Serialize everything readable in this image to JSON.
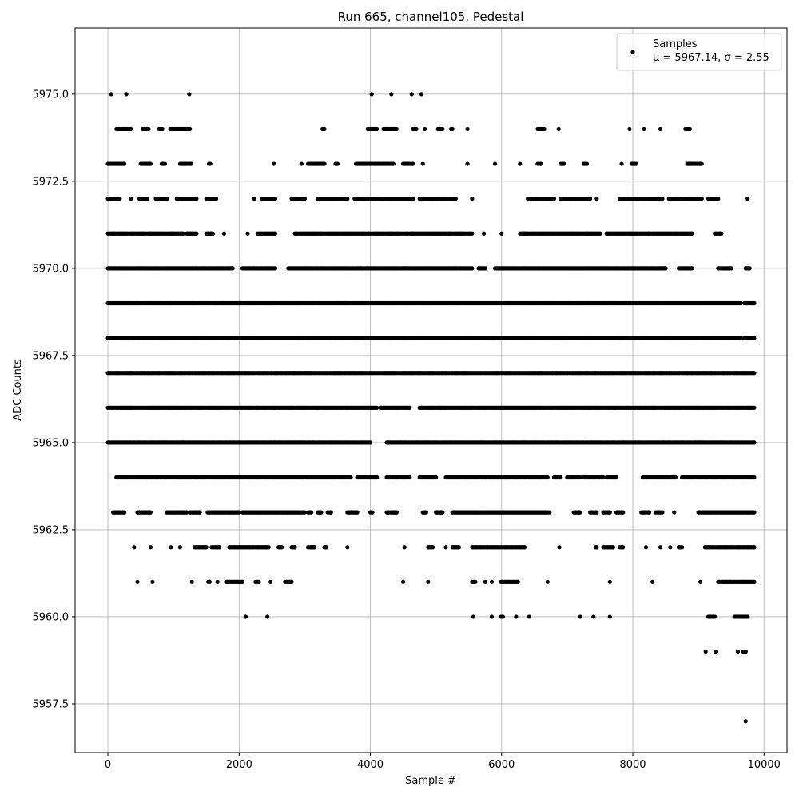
{
  "chart_data": {
    "type": "scatter",
    "title": "Run 665, channel105, Pedestal",
    "xlabel": "Sample #",
    "ylabel": "ADC Counts",
    "xlim": [
      -500,
      10350
    ],
    "ylim": [
      5956.1,
      5976.9
    ],
    "x_ticks": [
      0,
      2000,
      4000,
      6000,
      8000,
      10000
    ],
    "y_ticks": [
      5957.5,
      5960.0,
      5962.5,
      5965.0,
      5967.5,
      5970.0,
      5972.5,
      5975.0
    ],
    "x_tick_labels": [
      "0",
      "2000",
      "4000",
      "6000",
      "8000",
      "10000"
    ],
    "y_tick_labels": [
      "5957.5",
      "5960.0",
      "5962.5",
      "5965.0",
      "5967.5",
      "5970.0",
      "5972.5",
      "5975.0"
    ],
    "grid": true,
    "legend": {
      "placement": "top-right",
      "series_name": "Samples",
      "stats_text": "μ = 5967.14, σ = 2.55"
    },
    "marker_color": "#000000",
    "series": [
      {
        "name": "Samples",
        "levels": [
          {
            "y": 5975,
            "ranges": [
              [
                50,
                50
              ],
              [
                280,
                280
              ],
              [
                1240,
                1240
              ],
              [
                4020,
                4020
              ],
              [
                4320,
                4320
              ],
              [
                4630,
                4630
              ],
              [
                4780,
                4780
              ]
            ]
          },
          {
            "y": 5974,
            "ranges": [
              [
                130,
                350
              ],
              [
                530,
                620
              ],
              [
                780,
                830
              ],
              [
                950,
                1250
              ],
              [
                3270,
                3300
              ],
              [
                3960,
                4100
              ],
              [
                4200,
                4400
              ],
              [
                4650,
                4700
              ],
              [
                4830,
                4830
              ],
              [
                5030,
                5100
              ],
              [
                5230,
                5250
              ],
              [
                5480,
                5480
              ],
              [
                6550,
                6650
              ],
              [
                6870,
                6870
              ],
              [
                7950,
                7950
              ],
              [
                8170,
                8170
              ],
              [
                8420,
                8420
              ],
              [
                8800,
                8870
              ]
            ]
          },
          {
            "y": 5973,
            "ranges": [
              [
                0,
                250
              ],
              [
                500,
                650
              ],
              [
                820,
                870
              ],
              [
                1100,
                1270
              ],
              [
                1540,
                1560
              ],
              [
                2530,
                2530
              ],
              [
                2950,
                2950
              ],
              [
                3050,
                3300
              ],
              [
                3470,
                3500
              ],
              [
                3780,
                4350
              ],
              [
                4500,
                4650
              ],
              [
                4800,
                4800
              ],
              [
                5480,
                5480
              ],
              [
                5900,
                5900
              ],
              [
                6280,
                6280
              ],
              [
                6550,
                6600
              ],
              [
                6900,
                6950
              ],
              [
                7250,
                7300
              ],
              [
                7830,
                7830
              ],
              [
                7980,
                8050
              ],
              [
                8830,
                9050
              ]
            ]
          },
          {
            "y": 5972,
            "ranges": [
              [
                0,
                180
              ],
              [
                350,
                350
              ],
              [
                480,
                600
              ],
              [
                730,
                900
              ],
              [
                1050,
                1350
              ],
              [
                1500,
                1650
              ],
              [
                2230,
                2230
              ],
              [
                2350,
                2550
              ],
              [
                2800,
                3000
              ],
              [
                3200,
                3650
              ],
              [
                3760,
                4650
              ],
              [
                4750,
                5300
              ],
              [
                5550,
                5550
              ],
              [
                6400,
                6800
              ],
              [
                6900,
                7350
              ],
              [
                7450,
                7450
              ],
              [
                7800,
                8450
              ],
              [
                8550,
                9050
              ],
              [
                9150,
                9300
              ],
              [
                9750,
                9750
              ]
            ]
          },
          {
            "y": 5971,
            "ranges": [
              [
                0,
                1150
              ],
              [
                1200,
                1350
              ],
              [
                1500,
                1600
              ],
              [
                1770,
                1770
              ],
              [
                2130,
                2130
              ],
              [
                2280,
                2550
              ],
              [
                2850,
                5550
              ],
              [
                5730,
                5730
              ],
              [
                6000,
                6000
              ],
              [
                6280,
                7500
              ],
              [
                7600,
                8900
              ],
              [
                9250,
                9350
              ]
            ]
          },
          {
            "y": 5970,
            "ranges": [
              [
                0,
                1900
              ],
              [
                2050,
                2550
              ],
              [
                2750,
                5550
              ],
              [
                5650,
                5750
              ],
              [
                5900,
                8500
              ],
              [
                8700,
                8900
              ],
              [
                9300,
                9500
              ],
              [
                9720,
                9780
              ]
            ]
          },
          {
            "y": 5969,
            "ranges": [
              [
                0,
                9650
              ],
              [
                9700,
                9850
              ]
            ]
          },
          {
            "y": 5968,
            "ranges": [
              [
                0,
                9650
              ],
              [
                9700,
                9850
              ]
            ]
          },
          {
            "y": 5967,
            "ranges": [
              [
                0,
                9850
              ]
            ]
          },
          {
            "y": 5966,
            "ranges": [
              [
                0,
                4100
              ],
              [
                4150,
                4600
              ],
              [
                4750,
                9850
              ]
            ]
          },
          {
            "y": 5965,
            "ranges": [
              [
                0,
                4000
              ],
              [
                4250,
                9850
              ]
            ]
          },
          {
            "y": 5964,
            "ranges": [
              [
                130,
                350
              ],
              [
                380,
                880
              ],
              [
                900,
                3700
              ],
              [
                3800,
                4100
              ],
              [
                4250,
                4600
              ],
              [
                4750,
                5000
              ],
              [
                5150,
                6700
              ],
              [
                6800,
                6900
              ],
              [
                7000,
                7200
              ],
              [
                7250,
                7550
              ],
              [
                7600,
                7750
              ],
              [
                8150,
                8650
              ],
              [
                8750,
                9850
              ]
            ]
          },
          {
            "y": 5963,
            "ranges": [
              [
                80,
                250
              ],
              [
                450,
                650
              ],
              [
                900,
                1200
              ],
              [
                1250,
                1400
              ],
              [
                1520,
                2000
              ],
              [
                2050,
                3000
              ],
              [
                3050,
                3100
              ],
              [
                3200,
                3250
              ],
              [
                3350,
                3400
              ],
              [
                3650,
                3800
              ],
              [
                4000,
                4030
              ],
              [
                4250,
                4400
              ],
              [
                4800,
                4850
              ],
              [
                5000,
                5100
              ],
              [
                5250,
                6700
              ],
              [
                6730,
                6730
              ],
              [
                7100,
                7200
              ],
              [
                7350,
                7450
              ],
              [
                7550,
                7650
              ],
              [
                7750,
                7850
              ],
              [
                8130,
                8250
              ],
              [
                8350,
                8450
              ],
              [
                8630,
                8630
              ],
              [
                9000,
                9850
              ]
            ]
          },
          {
            "y": 5962,
            "ranges": [
              [
                400,
                400
              ],
              [
                650,
                650
              ],
              [
                960,
                960
              ],
              [
                1100,
                1100
              ],
              [
                1320,
                1500
              ],
              [
                1580,
                1700
              ],
              [
                1850,
                2450
              ],
              [
                2600,
                2650
              ],
              [
                2800,
                2850
              ],
              [
                3050,
                3150
              ],
              [
                3300,
                3330
              ],
              [
                3650,
                3650
              ],
              [
                4520,
                4520
              ],
              [
                4880,
                4950
              ],
              [
                5150,
                5150
              ],
              [
                5250,
                5350
              ],
              [
                5550,
                6350
              ],
              [
                6880,
                6880
              ],
              [
                7430,
                7450
              ],
              [
                7550,
                7700
              ],
              [
                7800,
                7850
              ],
              [
                8200,
                8200
              ],
              [
                8420,
                8420
              ],
              [
                8570,
                8570
              ],
              [
                8700,
                8750
              ],
              [
                9100,
                9850
              ]
            ]
          },
          {
            "y": 5961,
            "ranges": [
              [
                450,
                450
              ],
              [
                680,
                680
              ],
              [
                1280,
                1280
              ],
              [
                1530,
                1550
              ],
              [
                1670,
                1670
              ],
              [
                1800,
                2050
              ],
              [
                2250,
                2300
              ],
              [
                2480,
                2480
              ],
              [
                2700,
                2800
              ],
              [
                4500,
                4500
              ],
              [
                4880,
                4880
              ],
              [
                5550,
                5600
              ],
              [
                5750,
                5750
              ],
              [
                5850,
                5850
              ],
              [
                5990,
                6250
              ],
              [
                6700,
                6700
              ],
              [
                7650,
                7650
              ],
              [
                8300,
                8300
              ],
              [
                9030,
                9030
              ],
              [
                9300,
                9850
              ]
            ]
          },
          {
            "y": 5960,
            "ranges": [
              [
                2100,
                2100
              ],
              [
                2430,
                2430
              ],
              [
                5570,
                5570
              ],
              [
                5850,
                5850
              ],
              [
                5990,
                6020
              ],
              [
                6220,
                6220
              ],
              [
                6420,
                6420
              ],
              [
                7200,
                7200
              ],
              [
                7400,
                7400
              ],
              [
                7650,
                7650
              ],
              [
                9150,
                9250
              ],
              [
                9550,
                9750
              ]
            ]
          },
          {
            "y": 5959,
            "ranges": [
              [
                9110,
                9110
              ],
              [
                9260,
                9260
              ],
              [
                9600,
                9600
              ],
              [
                9680,
                9720
              ]
            ]
          },
          {
            "y": 5957,
            "ranges": [
              [
                9720,
                9720
              ]
            ]
          }
        ]
      }
    ]
  }
}
